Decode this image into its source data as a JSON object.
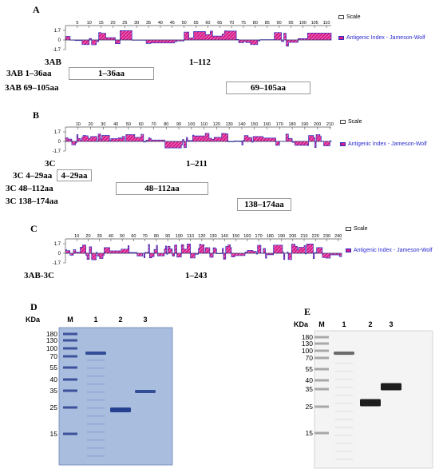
{
  "panelA": {
    "letter": "A",
    "y_ticks": [
      "1.7",
      "0",
      "-1.7"
    ],
    "x_ticks": [
      "5",
      "10",
      "15",
      "20",
      "25",
      "30",
      "35",
      "40",
      "45",
      "50",
      "55",
      "60",
      "65",
      "70",
      "75",
      "80",
      "85",
      "90",
      "95",
      "100",
      "105",
      "110"
    ],
    "length": 112,
    "legend_scale": "Scale",
    "legend_index": "Antigenic Index - Jameson-Wolf",
    "protein_label": "3AB",
    "range_label": "1–112",
    "fragments": [
      {
        "name": "3AB 1–36aa",
        "box": "1–36aa"
      },
      {
        "name": "3AB 69–105aa",
        "box": "69–105aa"
      }
    ]
  },
  "panelB": {
    "letter": "B",
    "y_ticks": [
      "1.7",
      "0",
      "-1.7"
    ],
    "x_ticks": [
      "10",
      "20",
      "30",
      "40",
      "50",
      "60",
      "70",
      "80",
      "90",
      "100",
      "110",
      "120",
      "130",
      "140",
      "150",
      "160",
      "170",
      "180",
      "190",
      "200",
      "210"
    ],
    "length": 211,
    "legend_scale": "Scale",
    "legend_index": "Antigenic Index - Jameson-Wolf",
    "protein_label": "3C",
    "range_label": "1–211",
    "fragments": [
      {
        "name": "3C 4–29aa",
        "box": "4–29aa"
      },
      {
        "name": "3C 48–112aa",
        "box": "48–112aa"
      },
      {
        "name": "3C 138–174aa",
        "box": "138–174aa"
      }
    ]
  },
  "panelC": {
    "letter": "C",
    "y_ticks": [
      "1.7",
      "0",
      "-1.7"
    ],
    "x_ticks": [
      "10",
      "20",
      "30",
      "40",
      "50",
      "60",
      "70",
      "80",
      "90",
      "100",
      "110",
      "120",
      "130",
      "140",
      "150",
      "160",
      "170",
      "180",
      "190",
      "200",
      "210",
      "220",
      "230",
      "240"
    ],
    "length": 243,
    "legend_scale": "Scale",
    "legend_index": "Antigenic Index - Jameson-Wolf",
    "protein_label": "3AB-3C",
    "range_label": "1–243"
  },
  "panelD": {
    "letter": "D",
    "kda_label": "KDa",
    "marker_label": "M",
    "lanes": [
      "1",
      "2",
      "3"
    ],
    "markers": [
      "180",
      "130",
      "100",
      "70",
      "55",
      "40",
      "35",
      "25",
      "15"
    ]
  },
  "panelE": {
    "letter": "E",
    "kda_label": "KDa",
    "marker_label": "M",
    "lanes": [
      "1",
      "2",
      "3"
    ],
    "markers": [
      "180",
      "130",
      "100",
      "70",
      "55",
      "40",
      "35",
      "25",
      "15"
    ]
  },
  "colors": {
    "antigenic_fill": "#d81b8a",
    "antigenic_line": "#3030c0",
    "gel_coomassie": "#a9bddf",
    "gel_band_coomassie": "#1f3a8a",
    "gel_western": "#f4f4f4"
  }
}
